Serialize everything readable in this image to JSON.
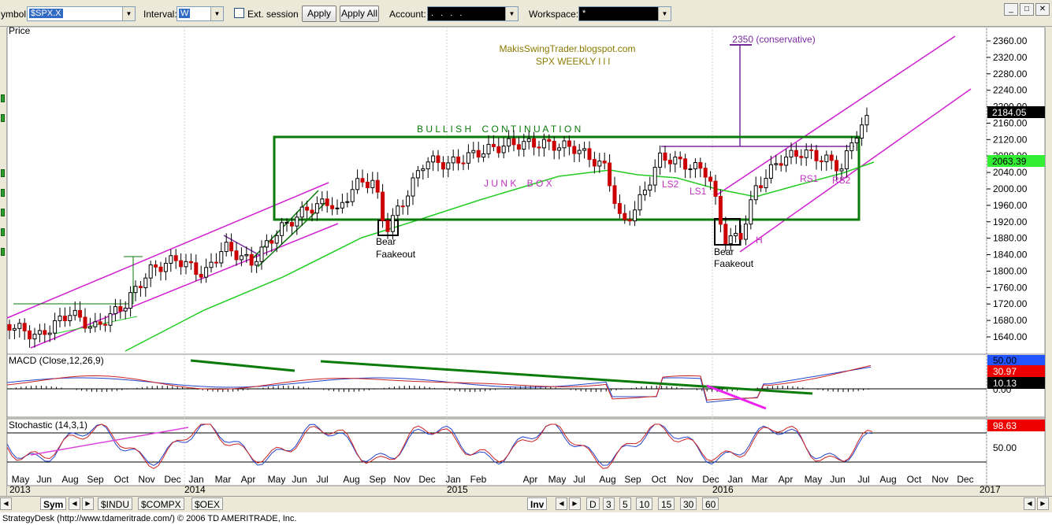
{
  "toolbar": {
    "symbol_label": "ymbol:",
    "symbol_value": "$SPX.X",
    "interval_label": "Interval:",
    "interval_value": "W",
    "ext_session_label": "Ext. session",
    "apply_label": "Apply",
    "apply_all_label": "Apply All",
    "account_label": "Account:",
    "account_value": ". . . .",
    "workspace_label": "Workspace:",
    "workspace_value": "*"
  },
  "chart": {
    "price_pane_label": "Price",
    "blog_text": "MakisSwingTrader.blogspot.com",
    "title_text": "SPX WEEKLY  l l l",
    "target_text": "2350 (conservative)",
    "continuation_text": "B U L L I S H    C O N T I N U A T I O N",
    "junk_box_text": "J U N K    B O X",
    "bear_fakeout_1": [
      "Bear",
      "Faakeout"
    ],
    "bear_fakeout_2": [
      "Bear",
      "Faakeout"
    ],
    "pattern_labels": [
      "LS2",
      "LS1",
      "H",
      "RS1",
      "RS2"
    ],
    "price_badges": {
      "last": "2184.05",
      "ma": "2063.39"
    },
    "macd_label": "MACD (Close,12,26,9)",
    "macd_badges": [
      "50.00",
      "30.97",
      "10.13"
    ],
    "macd_zero_label": "0.00",
    "stoch_label": "Stochastic (14,3,1)",
    "stoch_badge": "98.63",
    "stoch_mid_label": "50.00",
    "colors": {
      "up": "#000000",
      "down": "#cc0000",
      "box": "#0a7a0a",
      "channel": "#d020d0",
      "ma": "#22cc22",
      "target": "#7a2aa0"
    }
  },
  "x_axis": {
    "months": [
      "May",
      "Jun",
      "Aug",
      "Sep",
      "Oct",
      "Nov",
      "Dec",
      "Jan",
      "Mar",
      "Apr",
      "May",
      "Jun",
      "Jul",
      "Aug",
      "Sep",
      "Nov",
      "Dec",
      "Jan",
      "Feb",
      "Apr",
      "May",
      "Jul",
      "Aug",
      "Sep",
      "Oct",
      "Nov",
      "Dec",
      "Jan",
      "Mar",
      "Apr",
      "May",
      "Jun",
      "Jul",
      "Aug",
      "Oct",
      "Nov",
      "Dec"
    ],
    "years": [
      "2013",
      "2014",
      "2015",
      "2016",
      "2017"
    ]
  },
  "chart_data": {
    "type": "candlestick",
    "symbol": "$SPX.X",
    "y_ticks": [
      2360,
      2320,
      2280,
      2240,
      2200,
      2160,
      2120,
      2080,
      2040,
      2000,
      1960,
      1920,
      1880,
      1840,
      1800,
      1760,
      1720,
      1680,
      1640
    ],
    "ylim": [
      1600,
      2380
    ],
    "macd_values": {
      "signal": 50.0,
      "macd": 30.97,
      "hist": 10.13
    },
    "stochastic_value": 98.63,
    "last_price": 2184.05,
    "moving_average_value": 2063.39
  },
  "bottom_bar": {
    "sym_tab": "Sym",
    "tabs": [
      "$INDU",
      "$COMPX",
      "$OEX"
    ],
    "inv_tab": "Inv",
    "periods": [
      "D",
      "3",
      "5",
      "10",
      "15",
      "30",
      "60"
    ]
  },
  "status_text": "StrategyDesk (http://www.tdameritrade.com/) © 2006 TD AMERITRADE, Inc."
}
